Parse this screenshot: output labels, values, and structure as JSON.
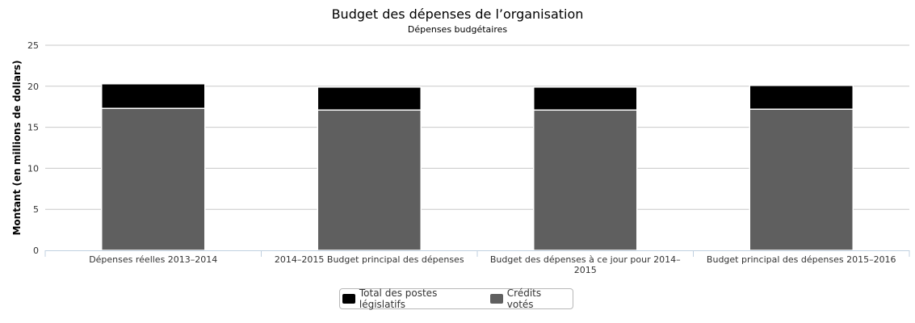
{
  "chart_data": {
    "type": "bar",
    "stacked": true,
    "title": "Budget des dépenses de l’organisation",
    "subtitle": "Dépenses budgétaires",
    "xlabel": "",
    "ylabel": "Montant (en millions de dollars)",
    "ylim": [
      0,
      25
    ],
    "yticks": [
      "0",
      "5",
      "10",
      "15",
      "20",
      "25"
    ],
    "grid": true,
    "legend_position": "bottom-center",
    "categories": [
      [
        "Dépenses réelles 2013–2014"
      ],
      [
        "2014–2015 Budget principal des dépenses"
      ],
      [
        "Budget des dépenses à ce jour pour 2014–",
        "2015"
      ],
      [
        "Budget principal des dépenses 2015–2016"
      ]
    ],
    "series": [
      {
        "name": "Crédits votés",
        "color": "#5f5f5f",
        "values": [
          17.3,
          17.1,
          17.1,
          17.2
        ]
      },
      {
        "name": "Total des postes législatifs",
        "color": "#000000",
        "values": [
          3.0,
          2.8,
          2.8,
          2.9
        ]
      }
    ]
  },
  "legend": {
    "items": [
      {
        "label": "Total des postes législatifs",
        "color": "#000000"
      },
      {
        "label": "Crédits votés",
        "color": "#5f5f5f"
      }
    ]
  }
}
